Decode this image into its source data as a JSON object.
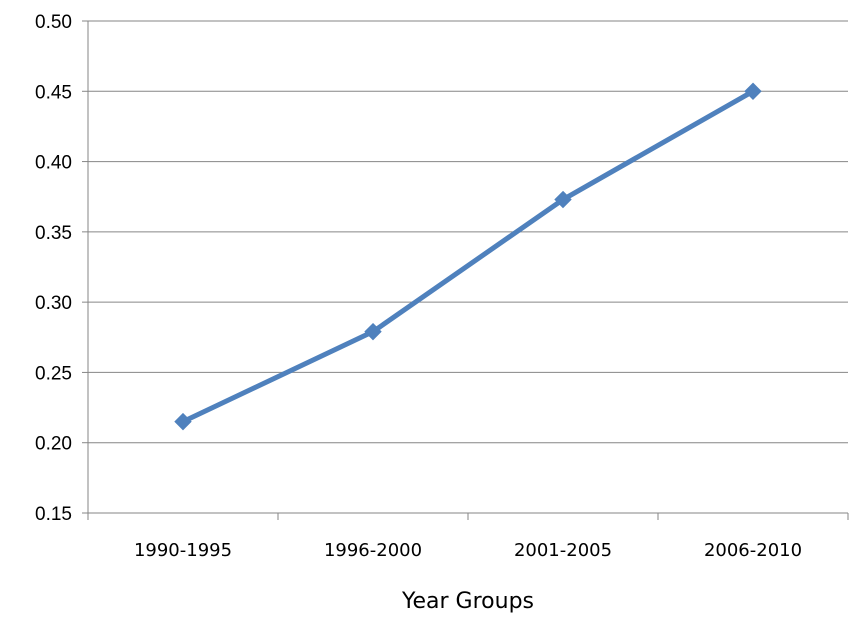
{
  "chart_data": {
    "type": "line",
    "title": "",
    "xlabel": "Year Groups",
    "ylabel": "",
    "categories": [
      "1990-1995",
      "1996-2000",
      "2001-2005",
      "2006-2010"
    ],
    "series": [
      {
        "values": [
          0.215,
          0.279,
          0.373,
          0.45
        ],
        "color": "#4F81BD",
        "marker": "diamond"
      }
    ],
    "ylim": [
      0.15,
      0.5
    ],
    "yticks": [
      "0.15",
      "0.20",
      "0.25",
      "0.30",
      "0.35",
      "0.40",
      "0.45",
      "0.50"
    ],
    "grid": true,
    "legend": "none"
  }
}
